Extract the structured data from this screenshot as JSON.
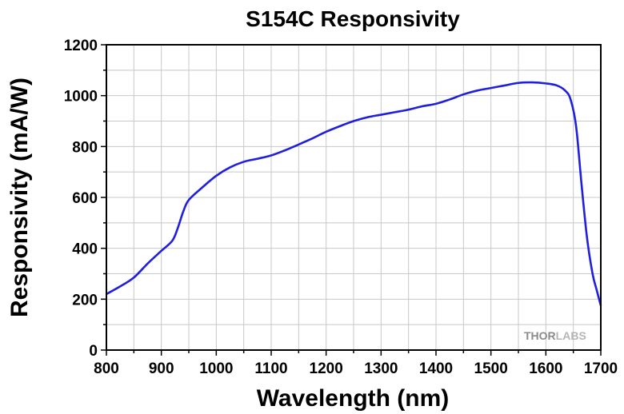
{
  "chart_data": {
    "type": "line",
    "title": "S154C Responsivity",
    "xlabel": "Wavelength (nm)",
    "ylabel": "Responsivity (mA/W)",
    "xlim": [
      800,
      1700
    ],
    "ylim": [
      0,
      1200
    ],
    "xticks": [
      800,
      900,
      1000,
      1100,
      1200,
      1300,
      1400,
      1500,
      1600,
      1700
    ],
    "yticks": [
      0,
      200,
      400,
      600,
      800,
      1000,
      1200
    ],
    "grid": true,
    "legend": "none",
    "series": [
      {
        "color": "#1f1fdd",
        "x": [
          800,
          825,
          850,
          875,
          900,
          920,
          930,
          940,
          950,
          975,
          1000,
          1025,
          1050,
          1075,
          1100,
          1125,
          1150,
          1175,
          1200,
          1225,
          1250,
          1275,
          1300,
          1325,
          1350,
          1375,
          1400,
          1425,
          1450,
          1475,
          1500,
          1525,
          1550,
          1575,
          1600,
          1620,
          1635,
          1645,
          1655,
          1665,
          1675,
          1685,
          1692,
          1700
        ],
        "y": [
          220,
          250,
          285,
          340,
          390,
          430,
          480,
          545,
          590,
          640,
          685,
          718,
          740,
          752,
          765,
          785,
          808,
          832,
          858,
          880,
          900,
          915,
          925,
          935,
          945,
          958,
          968,
          985,
          1005,
          1020,
          1030,
          1040,
          1050,
          1052,
          1048,
          1040,
          1020,
          985,
          880,
          650,
          440,
          300,
          240,
          175
        ]
      }
    ]
  },
  "watermark": {
    "part1": "THOR",
    "part2": "LABS"
  }
}
